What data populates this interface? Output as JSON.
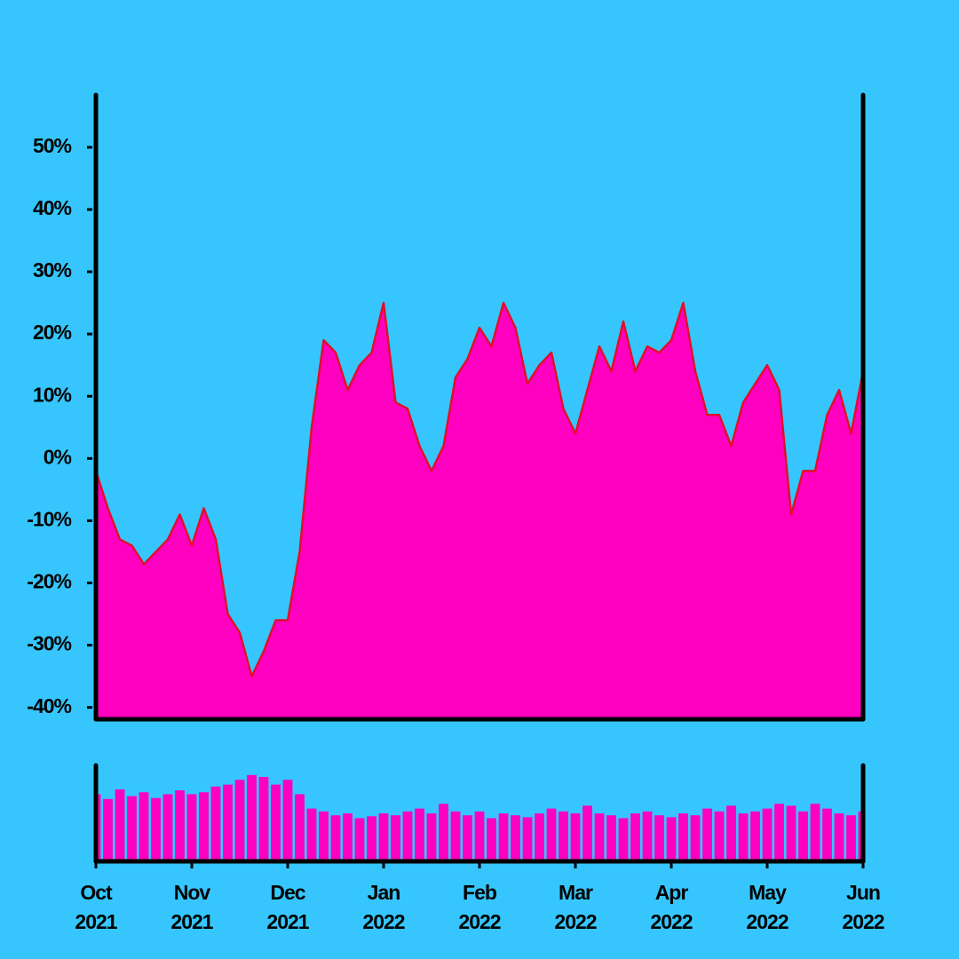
{
  "chart_data": [
    {
      "type": "area",
      "x": [
        0,
        0.125,
        0.25,
        0.375,
        0.5,
        0.625,
        0.75,
        0.875,
        1,
        1.125,
        1.25,
        1.375,
        1.5,
        1.625,
        1.75,
        1.875,
        2,
        2.125,
        2.25,
        2.375,
        2.5,
        2.625,
        2.75,
        2.875,
        3,
        3.125,
        3.25,
        3.375,
        3.5,
        3.625,
        3.75,
        3.875,
        4,
        4.125,
        4.25,
        4.375,
        4.5,
        4.625,
        4.75,
        4.875,
        5,
        5.125,
        5.25,
        5.375,
        5.5,
        5.625,
        5.75,
        5.875,
        6,
        6.125,
        6.25,
        6.375,
        6.5,
        6.625,
        6.75,
        6.875,
        7,
        7.125,
        7.25,
        7.375,
        7.5,
        7.625,
        7.75,
        7.875,
        8
      ],
      "values": [
        -2,
        -8,
        -13,
        -14,
        -17,
        -15,
        -13,
        -9,
        -14,
        -8,
        -13,
        -25,
        -28,
        -35,
        -31,
        -26,
        -26,
        -15,
        5,
        19,
        17,
        11,
        15,
        17,
        25,
        9,
        8,
        2,
        -2,
        2,
        13,
        16,
        21,
        18,
        25,
        21,
        12,
        15,
        17,
        8,
        4,
        11,
        18,
        14,
        22,
        14,
        18,
        17,
        19,
        25,
        14,
        7,
        7,
        2,
        9,
        12,
        15,
        11,
        -9,
        -2,
        -2,
        7,
        11,
        4,
        14
      ],
      "xlim": [
        0,
        8
      ],
      "ylim": [
        -41.9,
        58.4
      ],
      "yticks": [
        {
          "value": -40,
          "label": "-40%"
        },
        {
          "value": -30,
          "label": "-30%"
        },
        {
          "value": -20,
          "label": "-20%"
        },
        {
          "value": -10,
          "label": "-10%"
        },
        {
          "value": 0,
          "label": "0%"
        },
        {
          "value": 10,
          "label": "10%"
        },
        {
          "value": 20,
          "label": "20%"
        },
        {
          "value": 30,
          "label": "30%"
        },
        {
          "value": 40,
          "label": "40%"
        },
        {
          "value": 50,
          "label": "50%"
        }
      ],
      "color": "#ff00c0",
      "line_color": "#e0102a"
    },
    {
      "type": "bar",
      "x": [
        0,
        0.125,
        0.25,
        0.375,
        0.5,
        0.625,
        0.75,
        0.875,
        1,
        1.125,
        1.25,
        1.375,
        1.5,
        1.625,
        1.75,
        1.875,
        2,
        2.125,
        2.25,
        2.375,
        2.5,
        2.625,
        2.75,
        2.875,
        3,
        3.125,
        3.25,
        3.375,
        3.5,
        3.625,
        3.75,
        3.875,
        4,
        4.125,
        4.25,
        4.375,
        4.5,
        4.625,
        4.75,
        4.875,
        5,
        5.125,
        5.25,
        5.375,
        5.5,
        5.625,
        5.75,
        5.875,
        6,
        6.125,
        6.25,
        6.375,
        6.5,
        6.625,
        6.75,
        6.875,
        7,
        7.125,
        7.25,
        7.375,
        7.5,
        7.625,
        7.75,
        7.875,
        8
      ],
      "values": [
        70,
        65,
        75,
        68,
        72,
        66,
        70,
        74,
        70,
        72,
        78,
        80,
        85,
        90,
        88,
        80,
        85,
        70,
        55,
        52,
        48,
        50,
        45,
        47,
        50,
        48,
        52,
        55,
        50,
        60,
        52,
        48,
        52,
        45,
        50,
        48,
        46,
        50,
        55,
        52,
        50,
        58,
        50,
        48,
        45,
        50,
        52,
        48,
        46,
        50,
        48,
        55,
        52,
        58,
        50,
        52,
        55,
        60,
        58,
        52,
        60,
        55,
        50,
        48,
        52
      ],
      "xlim": [
        0,
        8
      ],
      "ylim": [
        0,
        100
      ],
      "xticks": [
        {
          "value": 0,
          "label": "Oct\n2021"
        },
        {
          "value": 1,
          "label": "Nov\n2021"
        },
        {
          "value": 2,
          "label": "Dec\n2021"
        },
        {
          "value": 3,
          "label": "Jan\n2022"
        },
        {
          "value": 4,
          "label": "Feb\n2022"
        },
        {
          "value": 5,
          "label": "Mar\n2022"
        },
        {
          "value": 6,
          "label": "Apr\n2022"
        },
        {
          "value": 7,
          "label": "May\n2022"
        },
        {
          "value": 8,
          "label": "Jun\n2022"
        }
      ],
      "color": "#ff00c0"
    }
  ]
}
